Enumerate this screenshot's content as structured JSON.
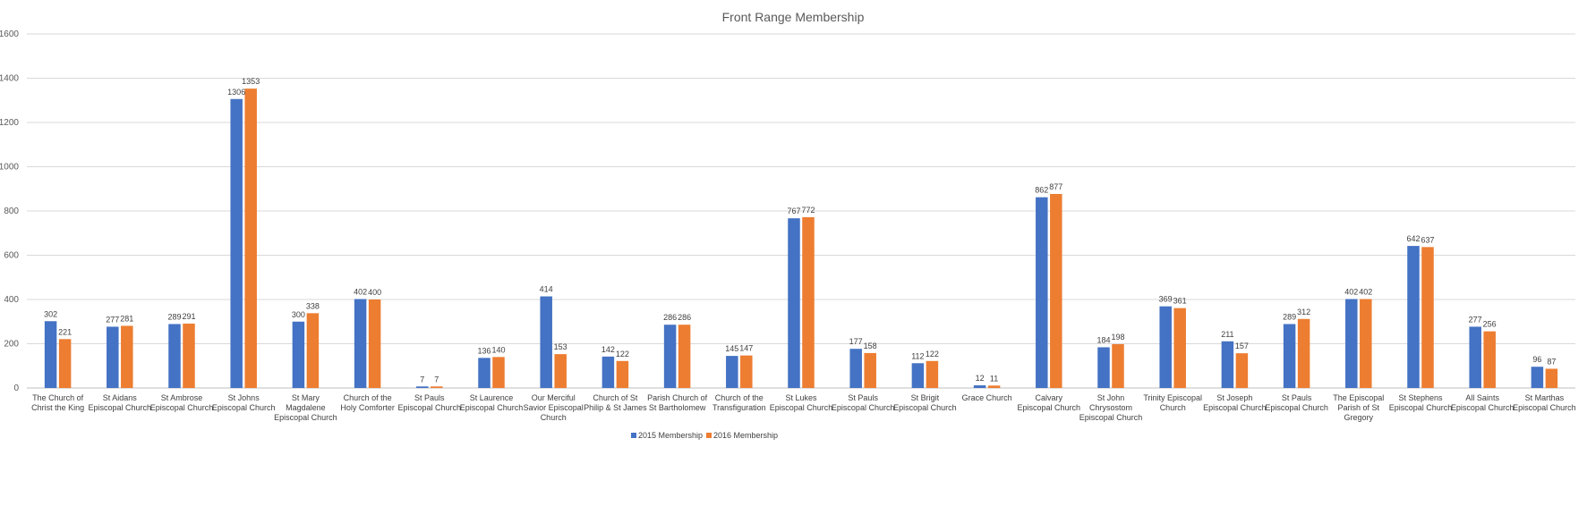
{
  "chart_data": {
    "type": "bar",
    "title": "Front Range Membership",
    "xlabel": "",
    "ylabel": "",
    "ylim": [
      0,
      1600
    ],
    "yticks": [
      0,
      200,
      400,
      600,
      800,
      1000,
      1200,
      1400,
      1600
    ],
    "grid": true,
    "legend_position": "bottom",
    "categories": [
      [
        "The Church of",
        "Christ the King"
      ],
      [
        "St Aidans",
        "Episcopal Church"
      ],
      [
        "St Ambrose",
        "Episcopal Church"
      ],
      [
        "St Johns",
        "Episcopal Church"
      ],
      [
        "St Mary",
        "Magdalene",
        "Episcopal Church"
      ],
      [
        "Church of the",
        "Holy Comforter"
      ],
      [
        "St Pauls",
        "Episcopal Church"
      ],
      [
        "St Laurence",
        "Episcopal Church"
      ],
      [
        "Our Merciful",
        "Savior Episcopal",
        "Church"
      ],
      [
        "Church of St",
        "Philip & St James"
      ],
      [
        "Parish Church of",
        "St Bartholomew"
      ],
      [
        "Church of the",
        "Transfiguration"
      ],
      [
        "St Lukes",
        "Episcopal Church"
      ],
      [
        "St Pauls",
        "Episcopal Church"
      ],
      [
        "St Brigit",
        "Episcopal Church"
      ],
      [
        "Grace Church"
      ],
      [
        "Calvary",
        "Episcopal Church"
      ],
      [
        "St John",
        "Chrysostom",
        "Episcopal Church"
      ],
      [
        "Trinity Episcopal",
        "Church"
      ],
      [
        "St Joseph",
        "Episcopal Church"
      ],
      [
        "St Pauls",
        "Episcopal Church"
      ],
      [
        "The Episcopal",
        "Parish of St",
        "Gregory"
      ],
      [
        "St Stephens",
        "Episcopal Church"
      ],
      [
        "All Saints",
        "Episcopal Church"
      ],
      [
        "St Marthas",
        "Episcopal Church"
      ]
    ],
    "series": [
      {
        "name": "2015 Membership",
        "color": "#4472C4",
        "values": [
          302,
          277,
          289,
          1306,
          300,
          402,
          7,
          136,
          414,
          142,
          286,
          145,
          767,
          177,
          112,
          12,
          862,
          184,
          369,
          211,
          289,
          402,
          642,
          277,
          96
        ]
      },
      {
        "name": "2016 Membership",
        "color": "#ED7D31",
        "values": [
          221,
          281,
          291,
          1353,
          338,
          400,
          7,
          140,
          153,
          122,
          286,
          147,
          772,
          158,
          122,
          11,
          877,
          198,
          361,
          157,
          312,
          402,
          637,
          256,
          87
        ]
      }
    ]
  }
}
